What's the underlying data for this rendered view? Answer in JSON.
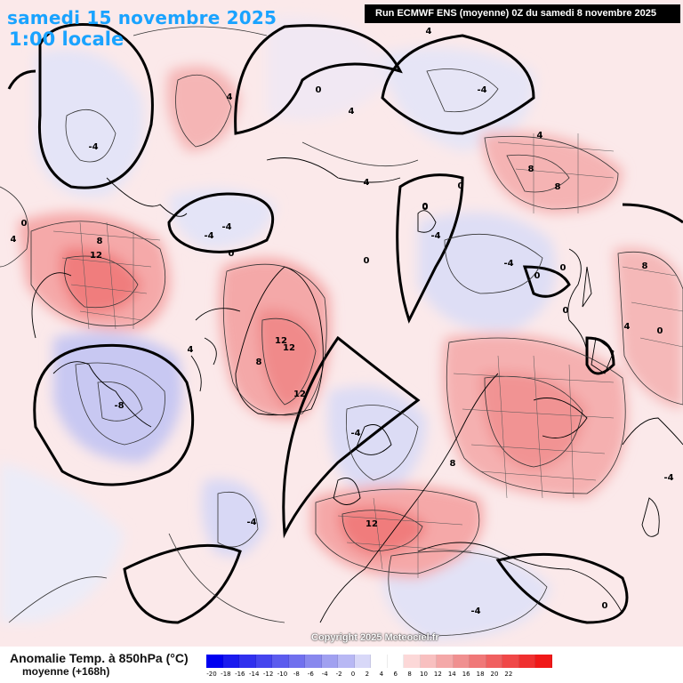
{
  "header": {
    "date": "samedi 15 novembre 2025",
    "time": "1:00 locale",
    "run": "Run ECMWF ENS (moyenne) 0Z du samedi 8 novembre 2025"
  },
  "copyright": "Copyright 2025 Meteociel.fr",
  "legend": {
    "variable": "Anomalie Temp. à 850hPa (°C)",
    "subtitle": "moyenne   (+168h)",
    "ticks": [
      "-20",
      "-18",
      "-16",
      "-14",
      "-12",
      "-10",
      "-8",
      "-6",
      "-4",
      "-2",
      "0",
      "2",
      "4",
      "6",
      "8",
      "10",
      "12",
      "14",
      "16",
      "18",
      "20",
      "22"
    ],
    "colors": [
      "#0000f0",
      "#1a1aee",
      "#3030ee",
      "#4545ee",
      "#5c5cee",
      "#7070ee",
      "#8888ee",
      "#a0a0f0",
      "#b8b8f4",
      "#d8d8f8",
      "#ffffff",
      "#ffffff",
      "#fcd8d8",
      "#f8c0c0",
      "#f4a8a8",
      "#f09090",
      "#f07878",
      "#f06060",
      "#f04848",
      "#f03030",
      "#f01818"
    ]
  },
  "contour_labels": [
    {
      "text": "4"
    },
    {
      "text": "0"
    },
    {
      "text": "-4"
    },
    {
      "text": "4"
    },
    {
      "text": "4"
    },
    {
      "text": "0"
    },
    {
      "text": "-4"
    },
    {
      "text": "4"
    },
    {
      "text": "8"
    },
    {
      "text": "8"
    },
    {
      "text": "0"
    },
    {
      "text": "4"
    },
    {
      "text": "8"
    },
    {
      "text": "12"
    },
    {
      "text": "0"
    },
    {
      "text": "-4"
    },
    {
      "text": "0"
    },
    {
      "text": "-4"
    },
    {
      "text": "0"
    },
    {
      "text": "-4"
    },
    {
      "text": "0"
    },
    {
      "text": "0"
    },
    {
      "text": "0"
    },
    {
      "text": "8"
    },
    {
      "text": "12"
    },
    {
      "text": "12"
    },
    {
      "text": "8"
    },
    {
      "text": "12"
    },
    {
      "text": "-8"
    },
    {
      "text": "-4"
    },
    {
      "text": "4"
    },
    {
      "text": "0"
    },
    {
      "text": "4"
    },
    {
      "text": "8"
    },
    {
      "text": "-4"
    },
    {
      "text": "12"
    },
    {
      "text": "-4"
    },
    {
      "text": "0"
    },
    {
      "text": "-4"
    },
    {
      "text": "0"
    },
    {
      "text": "4"
    },
    {
      "text": "-4"
    }
  ]
}
